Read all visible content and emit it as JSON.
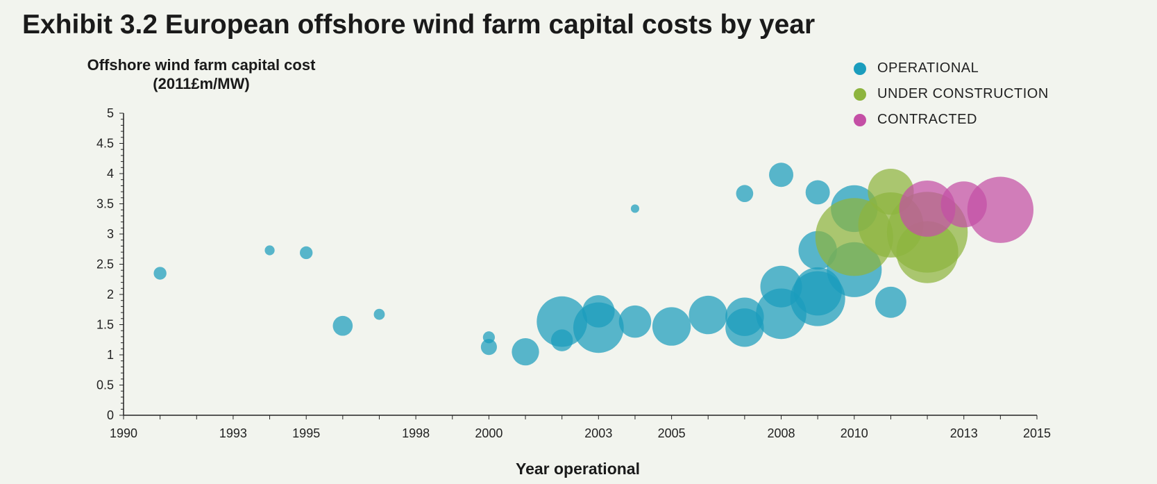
{
  "title": "Exhibit 3.2 European offshore wind farm capital costs by year",
  "chart_data": {
    "type": "scatter",
    "xlabel": "Year operational",
    "ylabel": "Offshore wind farm capital cost (2011£m/MW)",
    "xlim": [
      1990,
      2015
    ],
    "ylim": [
      0,
      5
    ],
    "x_ticks": [
      1990,
      1993,
      1995,
      1998,
      2000,
      2003,
      2005,
      2008,
      2010,
      2013,
      2015
    ],
    "x_tick_labels": [
      "1990",
      "1993",
      "1995",
      "1998",
      "2000",
      "2003",
      "2005",
      "2008",
      "2010",
      "2013",
      "2015"
    ],
    "y_ticks": [
      0,
      0.5,
      1,
      1.5,
      2,
      2.5,
      3,
      3.5,
      4,
      4.5,
      5
    ],
    "y_tick_labels": [
      "0",
      "0.5",
      "1",
      "1.5",
      "2",
      "2.5",
      "3",
      "3.5",
      "4",
      "4.5",
      "5"
    ],
    "grid": false,
    "legend_position": "top-right",
    "series": [
      {
        "name": "OPERATIONAL",
        "color": "#1b9dbd",
        "points": [
          {
            "x": 1991.0,
            "y": 2.35,
            "size": 5
          },
          {
            "x": 1994.0,
            "y": 2.73,
            "size": 2
          },
          {
            "x": 1995.0,
            "y": 2.69,
            "size": 5
          },
          {
            "x": 1996.0,
            "y": 1.48,
            "size": 18
          },
          {
            "x": 1997.0,
            "y": 1.67,
            "size": 3
          },
          {
            "x": 2000.0,
            "y": 1.29,
            "size": 4
          },
          {
            "x": 2000.0,
            "y": 1.13,
            "size": 10
          },
          {
            "x": 2001.0,
            "y": 1.05,
            "size": 40
          },
          {
            "x": 2002.0,
            "y": 1.55,
            "size": 166
          },
          {
            "x": 2002.0,
            "y": 1.24,
            "size": 23
          },
          {
            "x": 2003.0,
            "y": 1.72,
            "size": 60
          },
          {
            "x": 2003.0,
            "y": 1.45,
            "size": 166
          },
          {
            "x": 2004.0,
            "y": 3.42,
            "size": 1
          },
          {
            "x": 2004.0,
            "y": 1.55,
            "size": 60
          },
          {
            "x": 2005.0,
            "y": 1.47,
            "size": 90
          },
          {
            "x": 2006.0,
            "y": 1.66,
            "size": 90
          },
          {
            "x": 2007.0,
            "y": 3.67,
            "size": 12
          },
          {
            "x": 2007.0,
            "y": 1.63,
            "size": 90
          },
          {
            "x": 2007.0,
            "y": 1.45,
            "size": 90
          },
          {
            "x": 2008.0,
            "y": 3.98,
            "size": 30
          },
          {
            "x": 2008.0,
            "y": 2.13,
            "size": 108
          },
          {
            "x": 2008.0,
            "y": 1.68,
            "size": 166
          },
          {
            "x": 2009.0,
            "y": 3.69,
            "size": 30
          },
          {
            "x": 2009.0,
            "y": 2.73,
            "size": 90
          },
          {
            "x": 2009.0,
            "y": 2.05,
            "size": 150
          },
          {
            "x": 2009.0,
            "y": 1.93,
            "size": 200
          },
          {
            "x": 2010.0,
            "y": 3.42,
            "size": 140
          },
          {
            "x": 2010.0,
            "y": 2.41,
            "size": 200
          },
          {
            "x": 2011.0,
            "y": 1.87,
            "size": 55
          }
        ]
      },
      {
        "name": "UNDER CONSTRUCTION",
        "color": "#8db43e",
        "points": [
          {
            "x": 2010.0,
            "y": 2.95,
            "size": 425
          },
          {
            "x": 2011.0,
            "y": 3.7,
            "size": 135
          },
          {
            "x": 2011.0,
            "y": 3.15,
            "size": 290
          },
          {
            "x": 2012.0,
            "y": 3.03,
            "size": 460
          },
          {
            "x": 2012.0,
            "y": 2.7,
            "size": 260
          }
        ]
      },
      {
        "name": "CONTRACTED",
        "color": "#c44fa5",
        "points": [
          {
            "x": 2012.0,
            "y": 3.42,
            "size": 210
          },
          {
            "x": 2013.0,
            "y": 3.49,
            "size": 135
          },
          {
            "x": 2014.0,
            "y": 3.4,
            "size": 300
          }
        ]
      }
    ]
  }
}
